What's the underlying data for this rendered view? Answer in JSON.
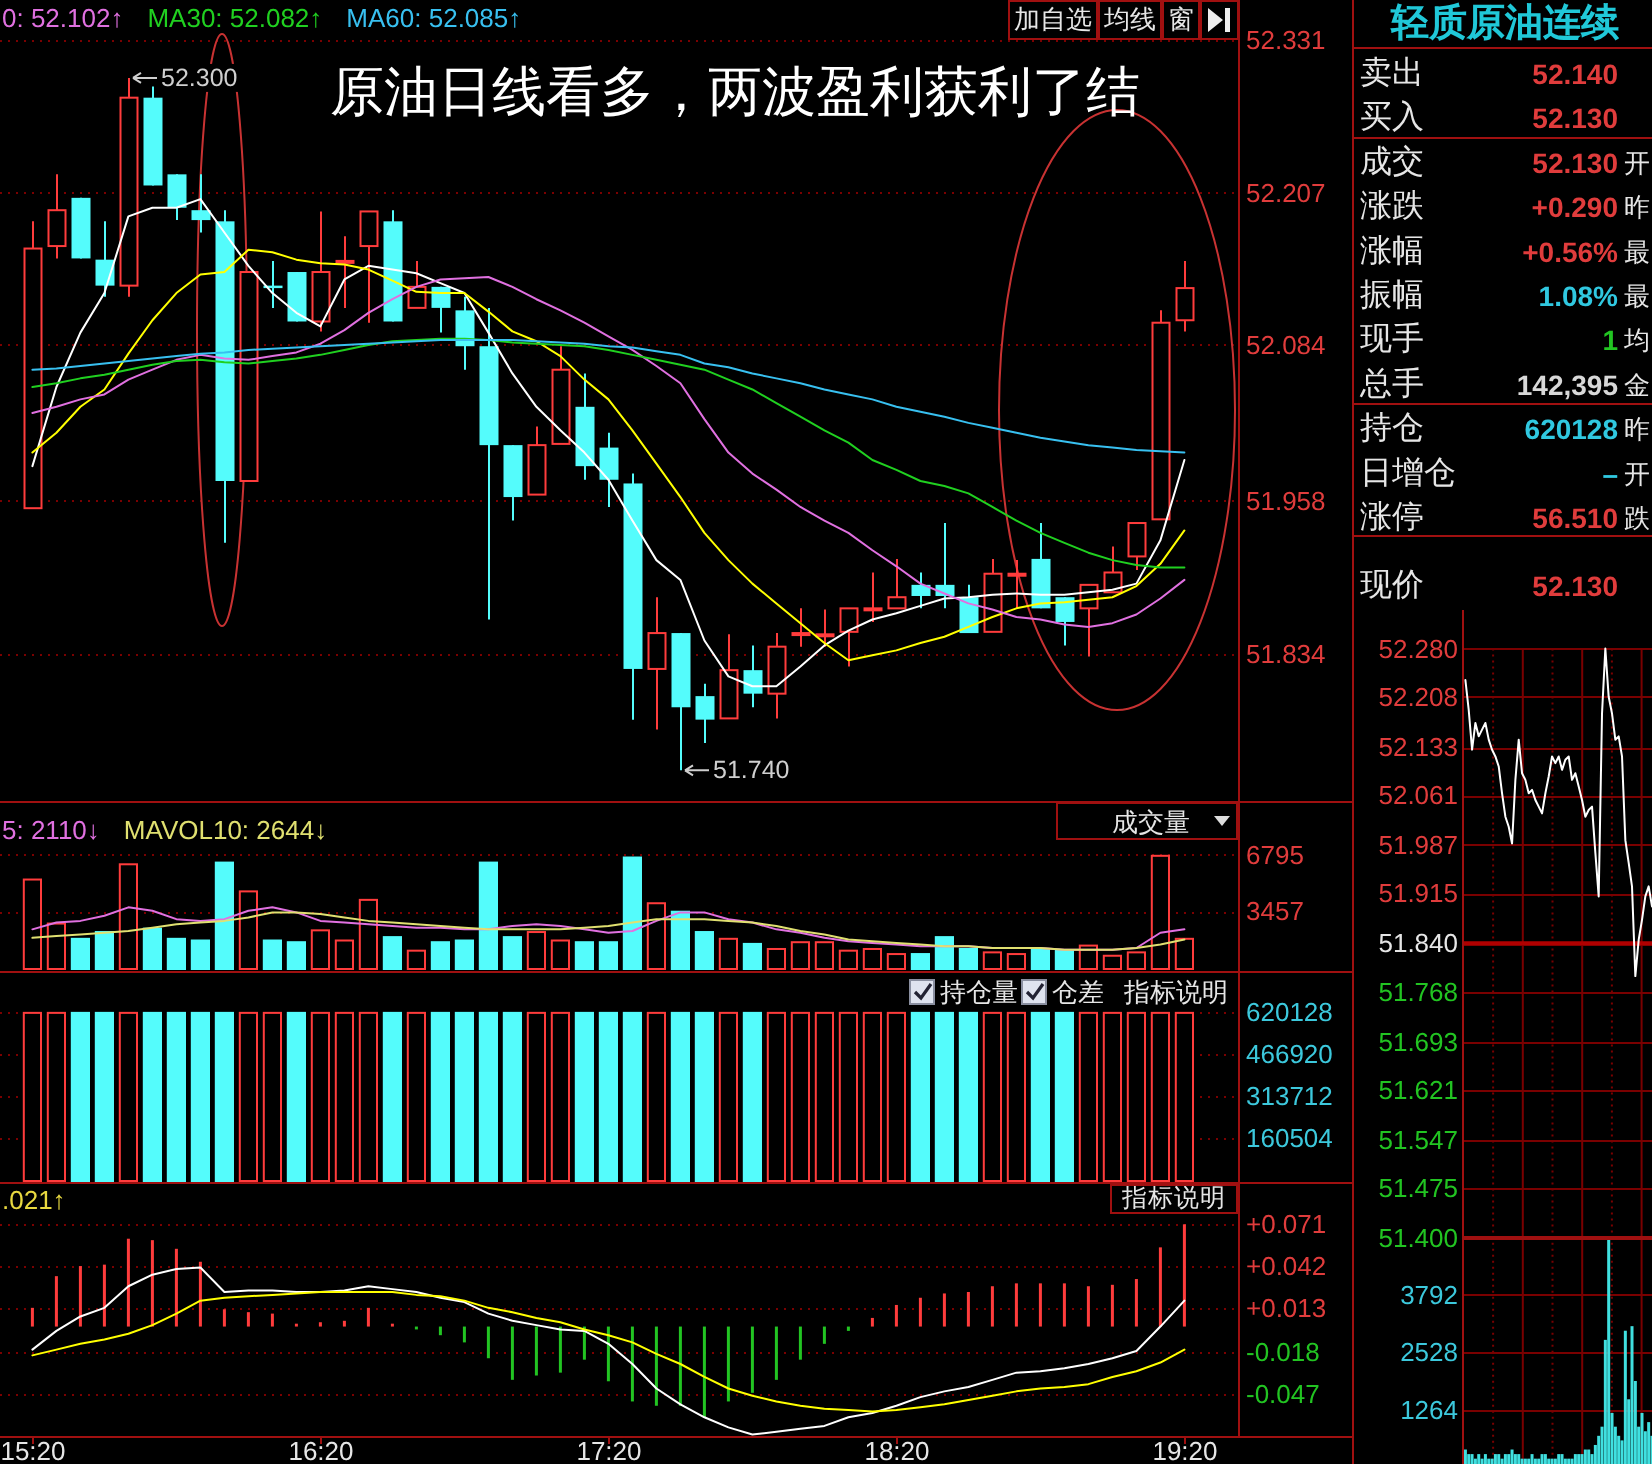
{
  "chart_data": [
    {
      "type": "candlestick",
      "title": "原油日线看多，两波盈利获利了结",
      "categories": [
        null,
        null,
        null,
        null,
        null,
        null,
        null,
        null,
        null,
        null,
        null,
        null,
        null,
        null,
        null,
        null,
        null,
        null,
        null,
        null,
        null,
        null,
        null,
        null,
        null,
        null,
        null,
        null,
        null,
        null,
        null,
        null,
        null,
        null,
        null,
        null,
        null,
        null,
        null,
        null,
        null,
        null,
        null,
        null,
        null,
        null,
        null,
        null,
        null
      ],
      "ohlc": [
        [
          51.952,
          52.184,
          51.952,
          52.162
        ],
        [
          52.164,
          52.222,
          52.154,
          52.193
        ],
        [
          52.203,
          52.203,
          52.154,
          52.154
        ],
        [
          52.153,
          52.184,
          52.123,
          52.132
        ],
        [
          52.132,
          52.3,
          52.123,
          52.284
        ],
        [
          52.284,
          52.293,
          52.213,
          52.213
        ],
        [
          52.222,
          52.222,
          52.185,
          52.195
        ],
        [
          52.193,
          52.222,
          52.175,
          52.185
        ],
        [
          52.184,
          52.193,
          51.924,
          51.974
        ],
        [
          51.974,
          52.143,
          51.974,
          52.143
        ],
        [
          52.132,
          52.152,
          52.114,
          52.13
        ],
        [
          52.143,
          52.143,
          52.103,
          52.103
        ],
        [
          52.103,
          52.192,
          52.095,
          52.143
        ],
        [
          52.151,
          52.172,
          52.114,
          52.152
        ],
        [
          52.164,
          52.192,
          52.102,
          52.192
        ],
        [
          52.184,
          52.193,
          52.103,
          52.103
        ],
        [
          52.114,
          52.152,
          52.114,
          52.131
        ],
        [
          52.131,
          52.131,
          52.094,
          52.114
        ],
        [
          52.112,
          52.123,
          52.064,
          52.083
        ],
        [
          52.083,
          52.114,
          51.862,
          52.003
        ],
        [
          52.003,
          52.003,
          51.942,
          51.961
        ],
        [
          51.963,
          52.018,
          51.963,
          52.003
        ],
        [
          52.004,
          52.083,
          52.004,
          52.064
        ],
        [
          52.034,
          52.061,
          51.975,
          51.986
        ],
        [
          52.001,
          52.013,
          51.953,
          51.975
        ],
        [
          51.972,
          51.98,
          51.781,
          51.822
        ],
        [
          51.822,
          51.88,
          51.773,
          51.851
        ],
        [
          51.851,
          51.851,
          51.74,
          51.791
        ],
        [
          51.8,
          51.81,
          51.762,
          51.781
        ],
        [
          51.782,
          51.85,
          51.782,
          51.821
        ],
        [
          51.821,
          51.841,
          51.791,
          51.802
        ],
        [
          51.802,
          51.851,
          51.782,
          51.84
        ],
        [
          51.85,
          51.871,
          51.84,
          51.851
        ],
        [
          51.849,
          51.87,
          51.84,
          51.85
        ],
        [
          51.852,
          51.871,
          51.824,
          51.871
        ],
        [
          51.87,
          51.9,
          51.86,
          51.871
        ],
        [
          51.871,
          51.911,
          51.871,
          51.88
        ],
        [
          51.89,
          51.9,
          51.871,
          51.881
        ],
        [
          51.89,
          51.94,
          51.871,
          51.881
        ],
        [
          51.88,
          51.89,
          51.851,
          51.851
        ],
        [
          51.852,
          51.911,
          51.852,
          51.899
        ],
        [
          51.898,
          51.91,
          51.871,
          51.899
        ],
        [
          51.911,
          51.94,
          51.871,
          51.871
        ],
        [
          51.88,
          51.88,
          51.841,
          51.86
        ],
        [
          51.871,
          51.89,
          51.832,
          51.89
        ],
        [
          51.884,
          51.921,
          51.884,
          51.9
        ],
        [
          51.913,
          51.94,
          51.902,
          51.94
        ],
        [
          51.943,
          52.112,
          51.943,
          52.102
        ],
        [
          52.104,
          52.152,
          52.095,
          52.13
        ]
      ],
      "colors": [
        "#ff3c3c",
        "#ff3c3c",
        "#54fcfc",
        "#54fcfc",
        "#ff3c3c",
        "#54fcfc",
        "#54fcfc",
        "#54fcfc",
        "#54fcfc",
        "#ff3c3c",
        "#54fcfc",
        "#54fcfc",
        "#ff3c3c",
        "#ff3c3c",
        "#ff3c3c",
        "#54fcfc",
        "#ff3c3c",
        "#54fcfc",
        "#54fcfc",
        "#54fcfc",
        "#54fcfc",
        "#ff3c3c",
        "#ff3c3c",
        "#54fcfc",
        "#54fcfc",
        "#54fcfc",
        "#ff3c3c",
        "#54fcfc",
        "#54fcfc",
        "#ff3c3c",
        "#54fcfc",
        "#ff3c3c",
        "#ff3c3c",
        "#ff3c3c",
        "#ff3c3c",
        "#ff3c3c",
        "#ff3c3c",
        "#54fcfc",
        "#54fcfc",
        "#54fcfc",
        "#ff3c3c",
        "#ff3c3c",
        "#54fcfc",
        "#54fcfc",
        "#ff3c3c",
        "#ff3c3c",
        "#ff3c3c",
        "#ff3c3c",
        "#ff3c3c"
      ],
      "series": [
        {
          "type": "line",
          "color": "#ffffff",
          "values": [
            51.986,
            52.05,
            52.094,
            52.126,
            52.188,
            52.195,
            52.195,
            52.202,
            52.175,
            52.148,
            52.126,
            52.11,
            52.099,
            52.137,
            52.148,
            52.145,
            52.142,
            52.134,
            52.126,
            52.094,
            52.061,
            52.034,
            52.015,
            51.997,
            51.975,
            51.942,
            51.91,
            51.894,
            51.845,
            51.816,
            51.808,
            51.808,
            51.824,
            51.841,
            51.853,
            51.862,
            51.867,
            51.873,
            51.879,
            51.88,
            51.882,
            51.883,
            51.882,
            51.882,
            51.884,
            51.886,
            51.891,
            51.926,
            51.991
          ]
        },
        {
          "type": "line",
          "color": "#ffff00",
          "values": [
            51.997,
            52.013,
            52.034,
            52.048,
            52.077,
            52.104,
            52.126,
            52.141,
            52.143,
            52.161,
            52.159,
            52.153,
            52.15,
            52.149,
            52.145,
            52.136,
            52.127,
            52.126,
            52.126,
            52.111,
            52.095,
            52.087,
            52.075,
            52.056,
            52.04,
            52.015,
            51.988,
            51.961,
            51.932,
            51.91,
            51.891,
            51.875,
            51.859,
            51.843,
            51.829,
            51.833,
            51.837,
            51.843,
            51.848,
            51.856,
            51.864,
            51.871,
            51.875,
            51.876,
            51.878,
            51.88,
            51.889,
            51.907,
            51.934
          ]
        },
        {
          "type": "line",
          "name": "0: 52.102↑",
          "color": "#e070e0",
          "values": [
            52.029,
            52.034,
            52.04,
            52.044,
            52.056,
            52.064,
            52.072,
            52.076,
            52.073,
            52.072,
            52.075,
            52.078,
            52.085,
            52.096,
            52.11,
            52.121,
            52.131,
            52.137,
            52.138,
            52.139,
            52.131,
            52.121,
            52.112,
            52.102,
            52.091,
            52.08,
            52.067,
            52.053,
            52.024,
            51.997,
            51.98,
            51.967,
            51.953,
            51.942,
            51.932,
            51.918,
            51.905,
            51.891,
            51.883,
            51.875,
            51.87,
            51.864,
            51.862,
            51.858,
            51.856,
            51.859,
            51.866,
            51.879,
            51.894
          ]
        },
        {
          "type": "line",
          "name": "MA30: 52.082↑",
          "color": "#20d020",
          "values": [
            52.05,
            52.053,
            52.057,
            52.06,
            52.064,
            52.068,
            52.071,
            52.072,
            52.07,
            52.069,
            52.071,
            52.073,
            52.076,
            52.08,
            52.084,
            52.087,
            52.088,
            52.089,
            52.089,
            52.088,
            52.086,
            52.085,
            52.084,
            52.083,
            52.08,
            52.076,
            52.072,
            52.068,
            52.064,
            52.056,
            52.048,
            52.037,
            52.026,
            52.015,
            52.005,
            51.991,
            51.983,
            51.974,
            51.97,
            51.964,
            51.953,
            51.942,
            51.932,
            51.924,
            51.916,
            51.91,
            51.906,
            51.904,
            51.904
          ]
        },
        {
          "type": "line",
          "name": "MA60: 52.085↑",
          "color": "#38c0f0",
          "values": [
            52.064,
            52.065,
            52.067,
            52.069,
            52.071,
            52.073,
            52.075,
            52.077,
            52.078,
            52.08,
            52.081,
            52.082,
            52.083,
            52.084,
            52.085,
            52.086,
            52.087,
            52.088,
            52.088,
            52.088,
            52.088,
            52.087,
            52.086,
            52.085,
            52.083,
            52.082,
            52.079,
            52.076,
            52.069,
            52.066,
            52.061,
            52.057,
            52.053,
            52.048,
            52.044,
            52.04,
            52.034,
            52.03,
            52.026,
            52.021,
            52.017,
            52.013,
            52.009,
            52.006,
            52.003,
            52.001,
            51.999,
            51.998,
            51.997
          ]
        }
      ],
      "ylim": [
        51.716,
        52.363
      ],
      "yticks": [
        51.834,
        51.958,
        52.084,
        52.207,
        52.331
      ],
      "grid": "y",
      "legend": "top left",
      "tick_labels": "y",
      "annotations": [
        {
          "text": "52.300",
          "y": 52.3
        },
        {
          "text": "51.740",
          "y": 51.74
        },
        "加自选",
        "均线",
        "窗"
      ]
    },
    {
      "type": "bar",
      "categories": [
        null,
        null,
        null,
        null,
        null,
        null,
        null,
        null,
        null,
        null,
        null,
        null,
        null,
        null,
        null,
        null,
        null,
        null,
        null,
        null,
        null,
        null,
        null,
        null,
        null,
        null,
        null,
        null,
        null,
        null,
        null,
        null,
        null,
        null,
        null,
        null,
        null,
        null,
        null,
        null,
        null,
        null,
        null,
        null,
        null,
        null,
        null,
        null,
        null
      ],
      "series": [
        {
          "type": "bar",
          "values": [
            5400,
            2800,
            1900,
            2300,
            6300,
            2500,
            1900,
            1800,
            6400,
            4700,
            1800,
            1700,
            2400,
            1800,
            4200,
            2000,
            1200,
            1700,
            1800,
            6400,
            2000,
            2300,
            1800,
            1700,
            1700,
            6700,
            4000,
            3500,
            2300,
            1900,
            1600,
            1300,
            1700,
            1700,
            1200,
            1300,
            1000,
            1000,
            2000,
            1300,
            1100,
            1000,
            1300,
            1200,
            1500,
            900,
            1100,
            6800,
            1900
          ],
          "colors": [
            "#ff3c3c",
            "#ff3c3c",
            "#54fcfc",
            "#54fcfc",
            "#ff3c3c",
            "#54fcfc",
            "#54fcfc",
            "#54fcfc",
            "#54fcfc",
            "#ff3c3c",
            "#54fcfc",
            "#54fcfc",
            "#ff3c3c",
            "#ff3c3c",
            "#ff3c3c",
            "#54fcfc",
            "#ff3c3c",
            "#54fcfc",
            "#54fcfc",
            "#54fcfc",
            "#54fcfc",
            "#ff3c3c",
            "#ff3c3c",
            "#54fcfc",
            "#54fcfc",
            "#54fcfc",
            "#ff3c3c",
            "#54fcfc",
            "#54fcfc",
            "#ff3c3c",
            "#54fcfc",
            "#ff3c3c",
            "#ff3c3c",
            "#ff3c3c",
            "#ff3c3c",
            "#ff3c3c",
            "#ff3c3c",
            "#54fcfc",
            "#54fcfc",
            "#54fcfc",
            "#ff3c3c",
            "#ff3c3c",
            "#54fcfc",
            "#54fcfc",
            "#ff3c3c",
            "#ff3c3c",
            "#ff3c3c",
            "#ff3c3c",
            "#ff3c3c"
          ]
        },
        {
          "type": "line",
          "name": "5: 2110↓",
          "color": "#e070e0",
          "values": [
            2400,
            2800,
            2900,
            3200,
            3700,
            3500,
            3000,
            2900,
            3000,
            3500,
            3700,
            3400,
            2900,
            2800,
            2700,
            2600,
            2500,
            2500,
            2400,
            2400,
            2600,
            2700,
            2600,
            2400,
            2200,
            2300,
            2900,
            3400,
            3400,
            3000,
            2800,
            2400,
            2200,
            1900,
            1700,
            1600,
            1500,
            1400,
            1400,
            1400,
            1300,
            1300,
            1300,
            1200,
            1200,
            1200,
            1300,
            2200,
            2400
          ]
        },
        {
          "type": "line",
          "name": "MAVOL10: 2644↓",
          "color": "#e0e070",
          "values": [
            1900,
            2000,
            2100,
            2200,
            2300,
            2500,
            2700,
            2800,
            2900,
            3100,
            3400,
            3400,
            3300,
            3100,
            2900,
            2800,
            2700,
            2600,
            2500,
            2400,
            2400,
            2400,
            2400,
            2500,
            2600,
            2800,
            3000,
            3000,
            3000,
            2900,
            2800,
            2600,
            2300,
            2100,
            1800,
            1700,
            1600,
            1500,
            1400,
            1400,
            1300,
            1300,
            1300,
            1200,
            1200,
            1200,
            1300,
            1500,
            1800
          ]
        }
      ],
      "ylim": [
        0,
        9800
      ],
      "yticks": [
        3457,
        6795
      ],
      "grid": "y",
      "legend": "top left",
      "tick_labels": "y",
      "annotations": [
        "成交量"
      ]
    },
    {
      "type": "bar",
      "categories": [
        null,
        null,
        null,
        null,
        null,
        null,
        null,
        null,
        null,
        null,
        null,
        null,
        null,
        null,
        null,
        null,
        null,
        null,
        null,
        null,
        null,
        null,
        null,
        null,
        null,
        null,
        null,
        null,
        null,
        null,
        null,
        null,
        null,
        null,
        null,
        null,
        null,
        null,
        null,
        null,
        null,
        null,
        null,
        null,
        null,
        null,
        null,
        null,
        null
      ],
      "values": [
        620000,
        620000,
        620000,
        620000,
        620000,
        620000,
        620000,
        620000,
        620000,
        620000,
        620000,
        620000,
        620000,
        620000,
        620000,
        620000,
        620000,
        620000,
        620000,
        620000,
        620000,
        620000,
        620000,
        620000,
        620000,
        620000,
        620000,
        620000,
        620000,
        620000,
        620000,
        620000,
        620000,
        620000,
        620000,
        620000,
        620000,
        620000,
        620000,
        620000,
        620000,
        620000,
        620000,
        620000,
        620000,
        620000,
        620000,
        620000,
        620000
      ],
      "colors": [
        "#ff3c3c",
        "#ff3c3c",
        "#54fcfc",
        "#54fcfc",
        "#ff3c3c",
        "#54fcfc",
        "#54fcfc",
        "#54fcfc",
        "#54fcfc",
        "#ff3c3c",
        "#ff3c3c",
        "#54fcfc",
        "#ff3c3c",
        "#ff3c3c",
        "#ff3c3c",
        "#54fcfc",
        "#ff3c3c",
        "#54fcfc",
        "#54fcfc",
        "#54fcfc",
        "#54fcfc",
        "#ff3c3c",
        "#ff3c3c",
        "#54fcfc",
        "#54fcfc",
        "#54fcfc",
        "#ff3c3c",
        "#54fcfc",
        "#54fcfc",
        "#ff3c3c",
        "#54fcfc",
        "#ff3c3c",
        "#ff3c3c",
        "#ff3c3c",
        "#ff3c3c",
        "#ff3c3c",
        "#ff3c3c",
        "#54fcfc",
        "#54fcfc",
        "#54fcfc",
        "#ff3c3c",
        "#ff3c3c",
        "#54fcfc",
        "#54fcfc",
        "#ff3c3c",
        "#ff3c3c",
        "#ff3c3c",
        "#ff3c3c",
        "#ff3c3c"
      ],
      "ylim": [
        0,
        758000
      ],
      "yticks": [
        160504,
        313712,
        466920,
        620128
      ],
      "grid": "y",
      "tick_labels": "y",
      "annotations": [
        "持仓量",
        "仓差",
        "指标说明"
      ]
    },
    {
      "type": "bar",
      "categories": [
        "15:20",
        null,
        null,
        null,
        null,
        null,
        null,
        null,
        null,
        null,
        null,
        null,
        "16:20",
        null,
        null,
        null,
        null,
        null,
        null,
        null,
        null,
        null,
        null,
        null,
        "17:20",
        null,
        null,
        null,
        null,
        null,
        null,
        null,
        null,
        null,
        null,
        null,
        "18:20",
        null,
        null,
        null,
        null,
        null,
        null,
        null,
        null,
        null,
        null,
        null,
        "19:20"
      ],
      "series": [
        {
          "type": "bar",
          "values": [
            0.013,
            0.035,
            0.042,
            0.043,
            0.061,
            0.06,
            0.054,
            0.045,
            0.012,
            0.01,
            0.009,
            0.002,
            0.003,
            0.004,
            0.013,
            0.002,
            -0.002,
            -0.006,
            -0.011,
            -0.022,
            -0.037,
            -0.034,
            -0.032,
            -0.023,
            -0.038,
            -0.052,
            -0.055,
            -0.055,
            -0.063,
            -0.052,
            -0.046,
            -0.037,
            -0.023,
            -0.012,
            -0.003,
            0.006,
            0.015,
            0.02,
            0.023,
            0.024,
            0.028,
            0.03,
            0.03,
            0.03,
            0.028,
            0.029,
            0.033,
            0.055,
            0.071
          ],
          "colors": [
            "#ff3c3c",
            "#ff3c3c",
            "#ff3c3c",
            "#ff3c3c",
            "#ff3c3c",
            "#ff3c3c",
            "#ff3c3c",
            "#ff3c3c",
            "#ff3c3c",
            "#ff3c3c",
            "#ff3c3c",
            "#ff3c3c",
            "#ff3c3c",
            "#ff3c3c",
            "#ff3c3c",
            "#ff3c3c",
            "#22c422",
            "#22c422",
            "#22c422",
            "#22c422",
            "#22c422",
            "#22c422",
            "#22c422",
            "#22c422",
            "#22c422",
            "#22c422",
            "#22c422",
            "#22c422",
            "#22c422",
            "#22c422",
            "#22c422",
            "#22c422",
            "#22c422",
            "#22c422",
            "#22c422",
            "#ff3c3c",
            "#ff3c3c",
            "#ff3c3c",
            "#ff3c3c",
            "#ff3c3c",
            "#ff3c3c",
            "#ff3c3c",
            "#ff3c3c",
            "#ff3c3c",
            "#ff3c3c",
            "#ff3c3c",
            "#ff3c3c",
            "#ff3c3c",
            "#ff3c3c"
          ]
        },
        {
          "type": "line",
          "color": "#ffffff",
          "values": [
            -0.016,
            -0.003,
            0.007,
            0.013,
            0.028,
            0.036,
            0.04,
            0.041,
            0.024,
            0.025,
            0.025,
            0.024,
            0.024,
            0.025,
            0.028,
            0.026,
            0.024,
            0.02,
            0.017,
            0.009,
            0.004,
            0.001,
            -0.002,
            -0.003,
            -0.012,
            -0.026,
            -0.043,
            -0.054,
            -0.063,
            -0.07,
            -0.075,
            -0.073,
            -0.071,
            -0.069,
            -0.063,
            -0.06,
            -0.055,
            -0.049,
            -0.045,
            -0.042,
            -0.037,
            -0.032,
            -0.031,
            -0.029,
            -0.026,
            -0.022,
            -0.017,
            0,
            0.018
          ]
        },
        {
          "type": "line",
          "color": "#ffff00",
          "values": [
            -0.02,
            -0.016,
            -0.012,
            -0.009,
            -0.005,
            0.001,
            0.009,
            0.018,
            0.02,
            0.021,
            0.022,
            0.023,
            0.024,
            0.024,
            0.024,
            0.024,
            0.022,
            0.021,
            0.018,
            0.013,
            0.01,
            0.006,
            0.003,
            -0.002,
            -0.006,
            -0.011,
            -0.019,
            -0.026,
            -0.035,
            -0.043,
            -0.048,
            -0.052,
            -0.055,
            -0.057,
            -0.058,
            -0.059,
            -0.058,
            -0.056,
            -0.054,
            -0.051,
            -0.048,
            -0.045,
            -0.043,
            -0.042,
            -0.04,
            -0.035,
            -0.031,
            -0.025,
            -0.016
          ]
        }
      ],
      "ylim": [
        -0.076,
        0.099
      ],
      "yticks": [
        {
          "value": -0.047,
          "label": "-0.047"
        },
        {
          "value": -0.018,
          "label": "-0.018"
        },
        {
          "value": 0.013,
          "label": "+0.013"
        },
        {
          "value": 0.042,
          "label": "+0.042"
        },
        {
          "value": 0.071,
          "label": "+0.071"
        }
      ],
      "grid": "y",
      "annotations": [
        ".021↑",
        "指标说明"
      ]
    },
    {
      "type": "other",
      "title": "轻质原油连续",
      "categories": [
        "卖出",
        "买入",
        "成交",
        "涨跌",
        "涨幅",
        "振幅",
        "现手",
        "总手",
        "持仓",
        "日增仓",
        "涨停",
        "现价"
      ],
      "value_labels": [
        "52.140",
        "52.130",
        "52.130",
        "+0.290",
        "+0.56%",
        "1.08%",
        "1",
        "142,395",
        "620128",
        "–",
        "56.510",
        "52.130"
      ],
      "colors": [
        "#e03c3c",
        "#e03c3c",
        "#e03c3c",
        "#e03c3c",
        "#e03c3c",
        "#30c8e0",
        "#22c422",
        "#d8d8d8",
        "#30c8e0",
        "#30c8e0",
        "#e03c3c",
        "#e03c3c"
      ],
      "y2_categories": [
        null,
        null,
        "开",
        "昨",
        "最",
        "最",
        "均",
        "金",
        "昨",
        "开",
        "跌",
        null
      ]
    },
    {
      "type": "line",
      "categories": [
        null,
        null,
        null,
        null,
        null,
        null,
        null,
        null,
        null,
        null,
        null,
        null,
        null,
        null,
        null,
        null,
        null,
        null,
        null,
        null,
        null,
        null,
        null,
        null,
        null,
        null,
        null,
        null,
        null,
        null,
        null,
        null,
        null,
        null,
        null,
        null,
        null,
        null,
        null,
        null,
        null,
        null,
        null,
        null,
        null,
        null,
        null,
        null,
        null,
        null,
        null,
        null,
        null,
        null,
        null,
        null,
        null
      ],
      "values": [
        52.233,
        52.188,
        52.129,
        52.169,
        52.149,
        52.159,
        52.169,
        52.144,
        52.129,
        52.119,
        52.104,
        52.064,
        52.029,
        52.014,
        51.989,
        52.084,
        52.144,
        52.094,
        52.084,
        52.064,
        52.069,
        52.054,
        52.044,
        52.034,
        52.064,
        52.089,
        52.119,
        52.109,
        52.119,
        52.099,
        52.114,
        52.119,
        52.084,
        52.094,
        52.074,
        52.054,
        52.029,
        52.039,
        52.044,
        51.975,
        51.91,
        52.183,
        52.28,
        52.208,
        52.183,
        52.144,
        52.149,
        52.119,
        51.994,
        51.96,
        51.925,
        51.791,
        51.845,
        51.875,
        51.91,
        51.925,
        51.895
      ],
      "color": "#ffffff",
      "ylim": [
        51.4,
        52.28
      ],
      "yticks": [
        {
          "value": 51.4,
          "label": "51.400"
        },
        51.475,
        51.547,
        51.621,
        51.693,
        51.768,
        {
          "value": 51.84,
          "label": "51.840"
        },
        51.915,
        51.987,
        52.061,
        52.133,
        52.208,
        {
          "value": 52.28,
          "label": "52.280"
        }
      ],
      "ref_lines": [
        {
          "axis": "y",
          "value": 51.84,
          "color": "#b00000"
        }
      ],
      "grid": true,
      "tick_labels": "y"
    },
    {
      "type": "bar",
      "categories": [
        null,
        null,
        null,
        null,
        null,
        null,
        null,
        null,
        null,
        null,
        null,
        null,
        null,
        null,
        null,
        null,
        null,
        null,
        null,
        null,
        null,
        null,
        null,
        null,
        null,
        null,
        null,
        null,
        null,
        null,
        null,
        null,
        null,
        null,
        null,
        null,
        null,
        null,
        null,
        null,
        null,
        null,
        null,
        null,
        null,
        null,
        null,
        null,
        null,
        null,
        null,
        null,
        null,
        null,
        null,
        null,
        null
      ],
      "values": [
        400,
        300,
        300,
        200,
        300,
        200,
        300,
        200,
        200,
        300,
        300,
        200,
        300,
        300,
        400,
        300,
        300,
        200,
        200,
        200,
        300,
        200,
        200,
        300,
        300,
        200,
        200,
        200,
        300,
        300,
        200,
        200,
        200,
        300,
        300,
        300,
        400,
        400,
        300,
        500,
        700,
        900,
        2800,
        5000,
        1200,
        900,
        700,
        600,
        3000,
        1500,
        3100,
        1900,
        900,
        1200,
        800,
        1000,
        700
      ],
      "color": "#40e0e0",
      "ylim": [
        0,
        5056
      ],
      "yticks": [
        1264,
        2528,
        3792
      ],
      "grid": true,
      "tick_labels": "y"
    }
  ]
}
